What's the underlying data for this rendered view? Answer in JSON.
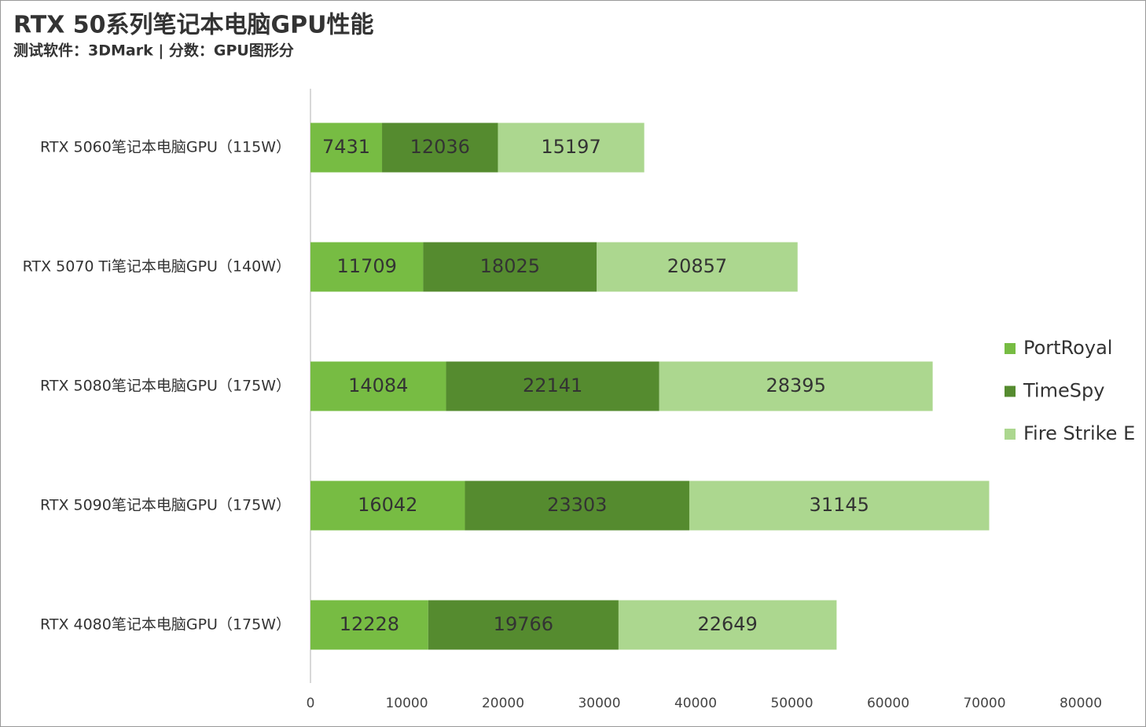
{
  "chart_data": {
    "type": "stacked-barh",
    "title": "RTX 50系列笔记本电脑GPU性能",
    "subtitle": "测试软件：3DMark | 分数：GPU图形分",
    "categories": [
      "RTX 5060笔记本电脑GPU（115W）",
      "RTX 5070 Ti笔记本电脑GPU（140W）",
      "RTX 5080笔记本电脑GPU（175W）",
      "RTX 5090笔记本电脑GPU（175W）",
      "RTX 4080笔记本电脑GPU（175W）"
    ],
    "series": [
      {
        "name": "PortRoyal",
        "color": "#77bc43",
        "values": [
          7431,
          11709,
          14084,
          16042,
          12228
        ]
      },
      {
        "name": "TimeSpy",
        "color": "#558b2f",
        "values": [
          12036,
          18025,
          22141,
          23303,
          19766
        ]
      },
      {
        "name": "Fire Strike E",
        "color": "#acd78f",
        "values": [
          15197,
          20857,
          28395,
          31145,
          22649
        ]
      }
    ],
    "xlim": [
      0,
      80000
    ],
    "xticks": [
      0,
      10000,
      20000,
      30000,
      40000,
      50000,
      60000,
      70000,
      80000
    ],
    "grid": false,
    "legend": "right"
  }
}
